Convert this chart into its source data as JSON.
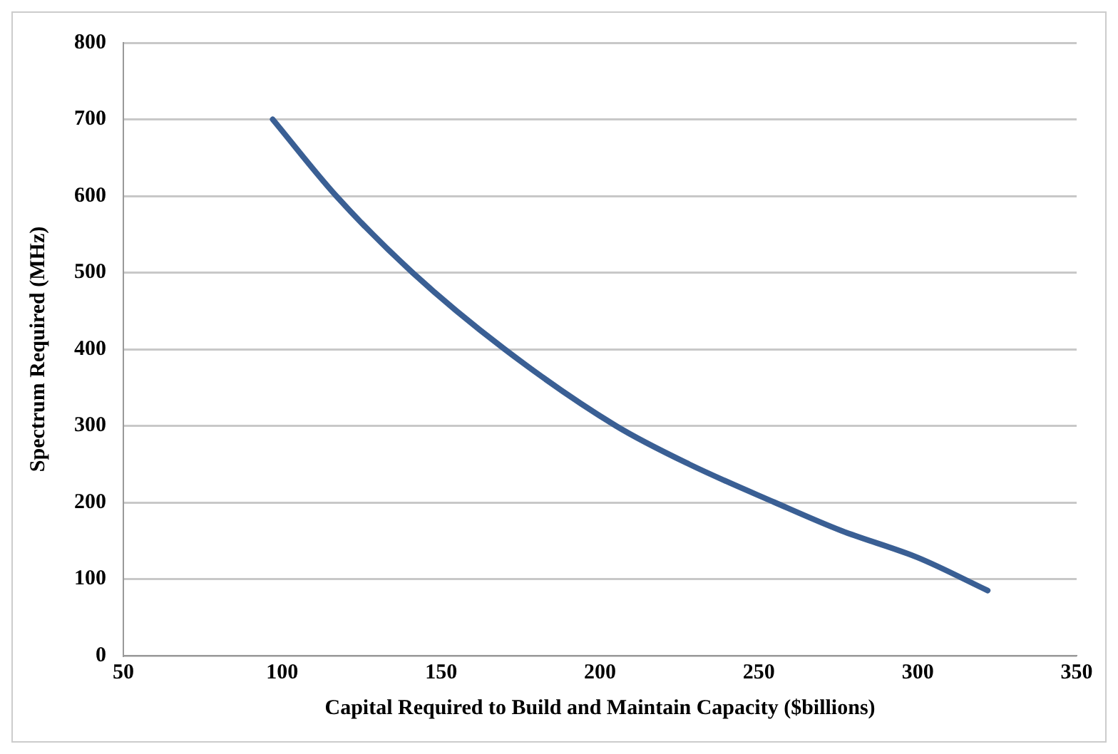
{
  "chart_data": {
    "type": "line",
    "xlabel": "Capital Required to Build and Maintain Capacity ($billions)",
    "ylabel": "Spectrum Required (MHz)",
    "x": [
      97,
      117,
      141,
      170,
      205,
      228,
      255,
      276,
      300,
      322
    ],
    "series": [
      {
        "color": "#3a5f94",
        "values": [
          700,
          600,
          500,
          400,
          300,
          250,
          200,
          163,
          128,
          85
        ]
      }
    ],
    "xlim": [
      50,
      350
    ],
    "xticks": [
      50,
      100,
      150,
      200,
      250,
      300,
      350
    ],
    "ylim": [
      0,
      800
    ],
    "yticks": [
      0,
      100,
      200,
      300,
      400,
      500,
      600,
      700,
      800
    ],
    "grid": "y",
    "marker": "none",
    "line_style": "solid",
    "legend": false
  }
}
